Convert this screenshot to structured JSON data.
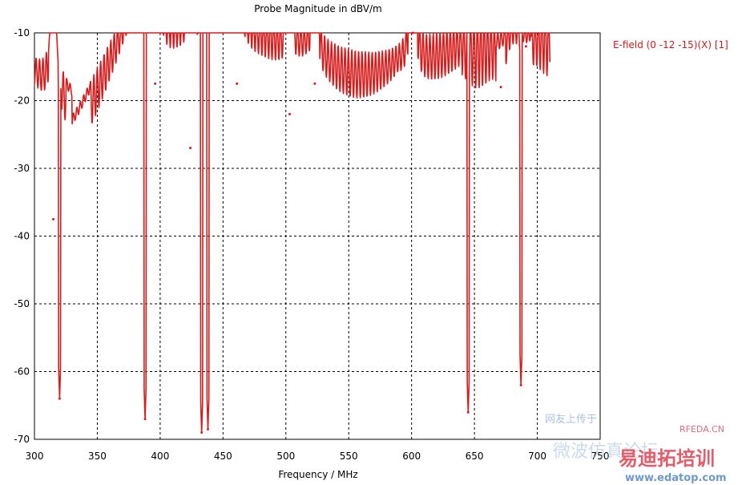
{
  "colors": {
    "series": "#d81c1c",
    "grid": "#000000",
    "legend_text": "#d01a1a"
  },
  "watermark": {
    "site_cn": "易迪拓培训",
    "site_url": "www.edatop.com",
    "brand": "RFEDA.CN",
    "tagline": "网友上传于",
    "art_text": "微波仿真论坛"
  },
  "chart_data": {
    "type": "line",
    "title": "Probe Magnitude in dBV/m",
    "xlabel": "Frequency / MHz",
    "ylabel": "",
    "xlim": [
      300,
      750
    ],
    "ylim": [
      -70,
      -10
    ],
    "xticks": [
      300,
      350,
      400,
      450,
      500,
      550,
      600,
      650,
      700,
      750
    ],
    "yticks": [
      -10,
      -20,
      -30,
      -40,
      -50,
      -60,
      -70
    ],
    "grid": true,
    "legend_position": "top-right, outside plot",
    "series": [
      {
        "name": "E-field (0 -12 -15)(X) [1]",
        "x_range": [
          300,
          710
        ],
        "peaks": [
          {
            "x": 315,
            "y": -37.5
          },
          {
            "x": 396,
            "y": -17.5
          },
          {
            "x": 424,
            "y": -27
          },
          {
            "x": 461,
            "y": -17.5
          },
          {
            "x": 503,
            "y": -22
          },
          {
            "x": 523,
            "y": -17.5
          },
          {
            "x": 601,
            "y": -10
          },
          {
            "x": 671,
            "y": -18
          },
          {
            "x": 691,
            "y": -12
          }
        ],
        "deep_minima": [
          {
            "x": 320,
            "y": -64
          },
          {
            "x": 388,
            "y": -67
          },
          {
            "x": 433,
            "y": -69
          },
          {
            "x": 438,
            "y": -68.5
          },
          {
            "x": 645,
            "y": -66
          },
          {
            "x": 687,
            "y": -62
          }
        ],
        "oscillation_period_mhz": 2.7
      }
    ]
  }
}
